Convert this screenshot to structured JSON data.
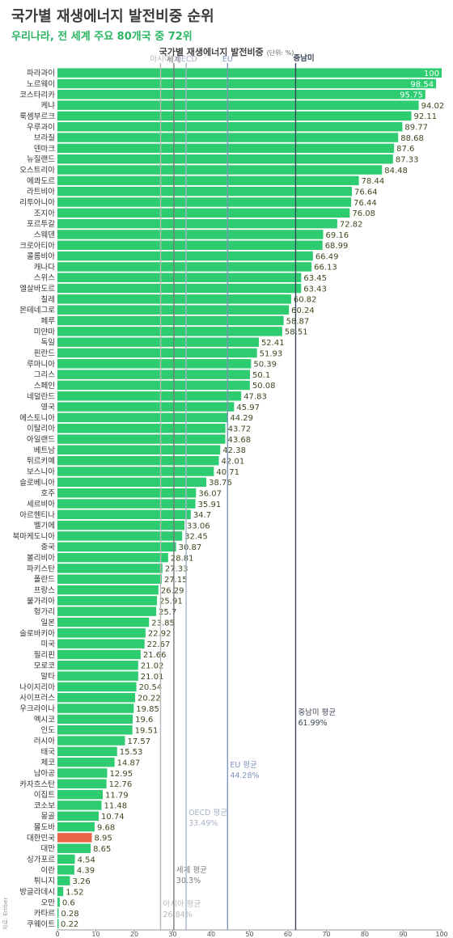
{
  "header": {
    "title": "국가별 재생에너지 발전비중 순위",
    "subtitle": "우리나라, 전 세계 주요 80개국 중 72위"
  },
  "source_note": "자료: Ember",
  "colors": {
    "bar": "#2ecc71",
    "highlight": "#e8674a",
    "subtitle": "#2db563"
  },
  "chart_data": {
    "type": "bar",
    "orientation": "horizontal",
    "title": "국가별 재생에너지 발전비중",
    "unit": "(단위: %)",
    "xlim": [
      0,
      100
    ],
    "xticks": [
      "0",
      "10",
      "20",
      "30",
      "40",
      "50",
      "60",
      "70",
      "80",
      "90",
      "100"
    ],
    "highlight_category": "대한민국",
    "categories": [
      "파라과이",
      "노르웨이",
      "코스타리카",
      "케냐",
      "룩셈부르크",
      "우루과이",
      "브라질",
      "덴마크",
      "뉴질랜드",
      "오스트리아",
      "에콰도르",
      "라트비아",
      "리투아니아",
      "조지아",
      "포르투갈",
      "스웨덴",
      "크로아티아",
      "콜롬비아",
      "캐나다",
      "스위스",
      "엘살바도르",
      "칠레",
      "몬테네그로",
      "페루",
      "미얀마",
      "독일",
      "핀란드",
      "루마니아",
      "그리스",
      "스페인",
      "네덜란드",
      "영국",
      "에스토니아",
      "이탈리아",
      "아일랜드",
      "베트남",
      "튀르키예",
      "보스니아",
      "슬로베니아",
      "호주",
      "세르비아",
      "아르헨티나",
      "벨기에",
      "북마케도니아",
      "중국",
      "볼리비아",
      "파키스탄",
      "폴란드",
      "프랑스",
      "불가리아",
      "헝가리",
      "일본",
      "슬로바키아",
      "미국",
      "필리핀",
      "모로코",
      "말타",
      "나이지리아",
      "사이프러스",
      "우크라이나",
      "멕시코",
      "인도",
      "러시아",
      "태국",
      "체코",
      "남아공",
      "카자흐스탄",
      "이집트",
      "코소보",
      "몽골",
      "몰도바",
      "대한민국",
      "대만",
      "싱가포르",
      "이란",
      "튀니지",
      "방글라데시",
      "오만",
      "카타르",
      "쿠웨이트"
    ],
    "values": [
      100,
      98.54,
      95.75,
      94.02,
      92.11,
      89.77,
      88.68,
      87.6,
      87.33,
      84.48,
      78.44,
      76.64,
      76.44,
      76.08,
      72.82,
      69.16,
      68.99,
      66.49,
      66.13,
      63.45,
      63.43,
      60.82,
      60.24,
      58.87,
      58.51,
      52.41,
      51.93,
      50.39,
      50.1,
      50.08,
      47.83,
      45.97,
      44.29,
      43.72,
      43.68,
      42.38,
      42.01,
      40.71,
      38.76,
      36.07,
      35.91,
      34.7,
      33.06,
      32.45,
      30.87,
      28.81,
      27.33,
      27.15,
      26.29,
      25.91,
      25.7,
      23.85,
      22.92,
      22.67,
      21.66,
      21.02,
      21.01,
      20.54,
      20.22,
      19.85,
      19.6,
      19.51,
      17.57,
      15.53,
      14.87,
      12.95,
      12.76,
      11.79,
      11.48,
      10.74,
      9.68,
      8.95,
      8.65,
      4.54,
      4.39,
      3.26,
      1.52,
      0.6,
      0.28,
      0.22
    ],
    "value_labels": [
      "100",
      "98.54",
      "95.75",
      "94.02",
      "92.11",
      "89.77",
      "88.68",
      "87.6",
      "87.33",
      "84.48",
      "78.44",
      "76.64",
      "76.44",
      "76.08",
      "72.82",
      "69.16",
      "68.99",
      "66.49",
      "66.13",
      "63.45",
      "63.43",
      "60.82",
      "60.24",
      "58.87",
      "58.51",
      "52.41",
      "51.93",
      "50.39",
      "50.1",
      "50.08",
      "47.83",
      "45.97",
      "44.29",
      "43.72",
      "43.68",
      "42.38",
      "42.01",
      "40.71",
      "38.76",
      "36.07",
      "35.91",
      "34.7",
      "33.06",
      "32.45",
      "30.87",
      "28.81",
      "27.33",
      "27.15",
      "26.29",
      "25.91",
      "25.7",
      "23.85",
      "22.92",
      "22.67",
      "21.66",
      "21.02",
      "21.01",
      "20.54",
      "20.22",
      "19.85",
      "19.6",
      "19.51",
      "17.57",
      "15.53",
      "14.87",
      "12.95",
      "12.76",
      "11.79",
      "11.48",
      "10.74",
      "9.68",
      "8.95",
      "8.65",
      "4.54",
      "4.39",
      "3.26",
      "1.52",
      "0.6",
      "0.28",
      "0.22"
    ],
    "reference_lines": [
      {
        "name": "아시아",
        "value": 26.84,
        "avg_label": "아시아 평균",
        "avg_value": "26.84%",
        "color": "#b8b8b8"
      },
      {
        "name": "세계",
        "value": 30.3,
        "avg_label": "세계 평균",
        "avg_value": "30.3%",
        "color": "#7a7a7a"
      },
      {
        "name": "OECD",
        "value": 33.49,
        "avg_label": "OECD 평균",
        "avg_value": "33.49%",
        "color": "#a7b3c9"
      },
      {
        "name": "EU",
        "value": 44.28,
        "avg_label": "EU 평균",
        "avg_value": "44.28%",
        "color": "#7d93b8"
      },
      {
        "name": "중남미",
        "value": 61.99,
        "avg_label": "중남미 평균",
        "avg_value": "61.99%",
        "color": "#3b4657"
      }
    ]
  }
}
